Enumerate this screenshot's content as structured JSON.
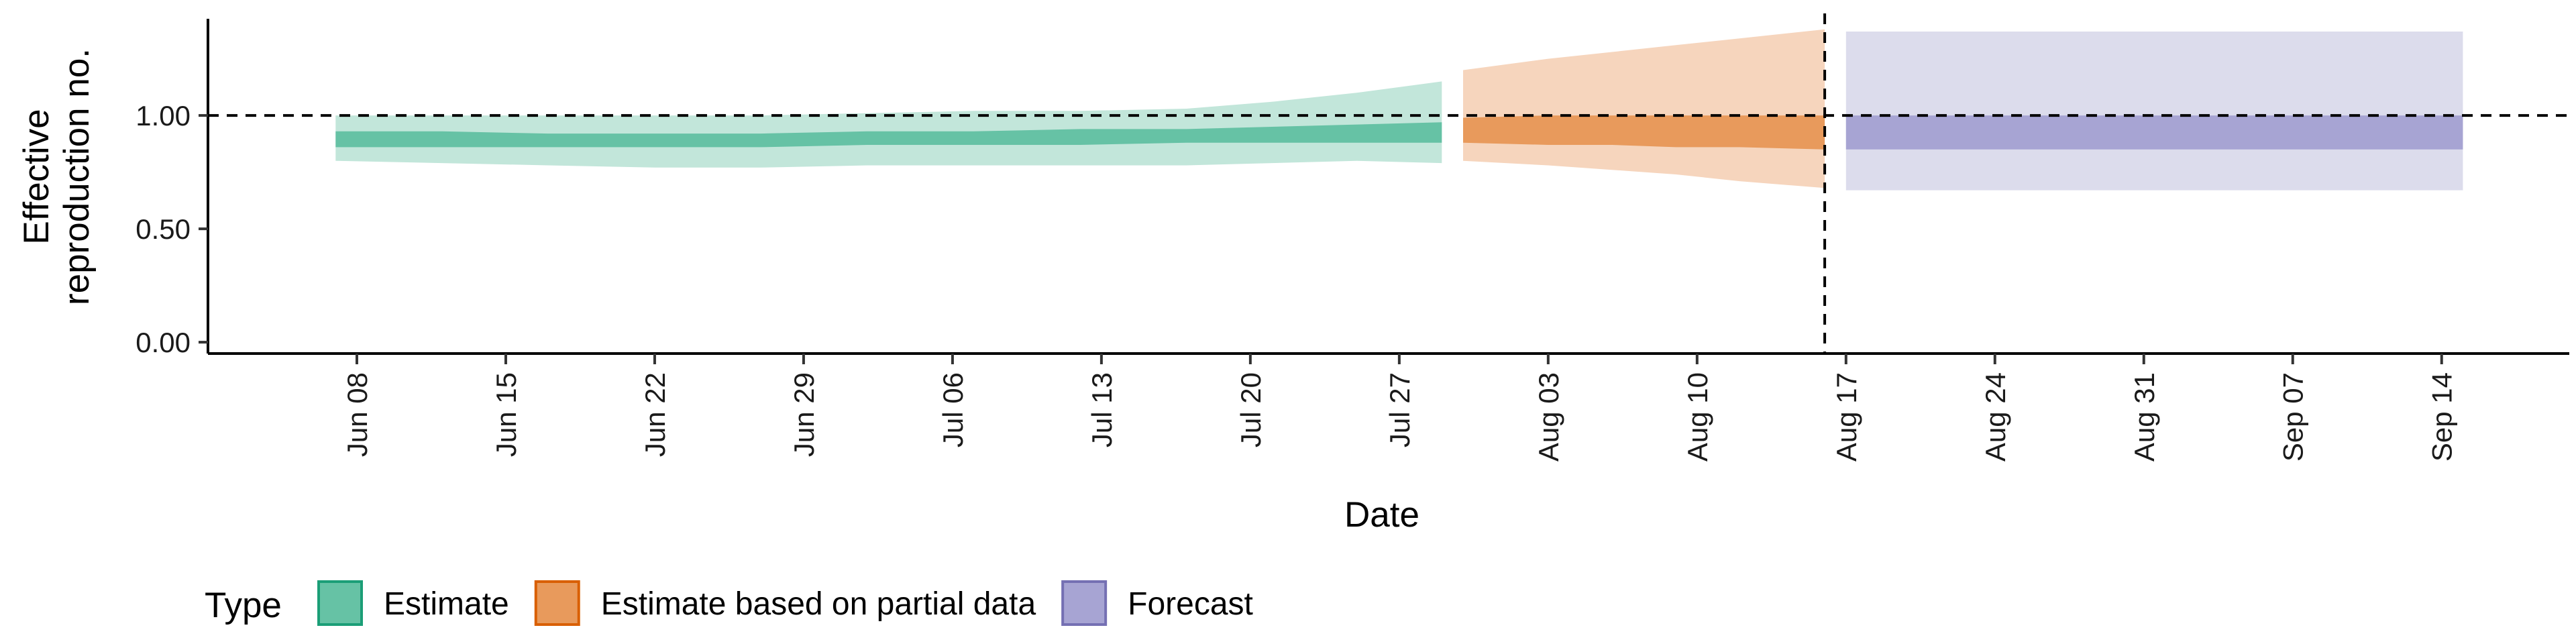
{
  "chart_data": {
    "type": "area",
    "xlabel": "Date",
    "ylabel_lines": [
      "Effective",
      "reproduction no."
    ],
    "x_domain": [
      "2020-06-01",
      "2020-09-20"
    ],
    "ylim": [
      -0.05,
      1.45
    ],
    "y_ticks": [
      {
        "value": 0.0,
        "label": "0.00"
      },
      {
        "value": 0.5,
        "label": "0.50"
      },
      {
        "value": 1.0,
        "label": "1.00"
      }
    ],
    "x_ticks": [
      {
        "date": "2020-06-08",
        "label": "Jun 08"
      },
      {
        "date": "2020-06-15",
        "label": "Jun 15"
      },
      {
        "date": "2020-06-22",
        "label": "Jun 22"
      },
      {
        "date": "2020-06-29",
        "label": "Jun 29"
      },
      {
        "date": "2020-07-06",
        "label": "Jul 06"
      },
      {
        "date": "2020-07-13",
        "label": "Jul 13"
      },
      {
        "date": "2020-07-20",
        "label": "Jul 20"
      },
      {
        "date": "2020-07-27",
        "label": "Jul 27"
      },
      {
        "date": "2020-08-03",
        "label": "Aug 03"
      },
      {
        "date": "2020-08-10",
        "label": "Aug 10"
      },
      {
        "date": "2020-08-17",
        "label": "Aug 17"
      },
      {
        "date": "2020-08-24",
        "label": "Aug 24"
      },
      {
        "date": "2020-08-31",
        "label": "Aug 31"
      },
      {
        "date": "2020-09-07",
        "label": "Sep 07"
      },
      {
        "date": "2020-09-14",
        "label": "Sep 14"
      }
    ],
    "reference_line_y": 1.0,
    "reference_line_date": "2020-08-16",
    "grid": false,
    "legend": {
      "title": "Type",
      "position": "bottom",
      "entries": [
        "Estimate",
        "Estimate based on partial data",
        "Forecast"
      ]
    },
    "series": [
      {
        "name": "Estimate",
        "fill": "#66c2a5",
        "outer_fill": "#c2e6da",
        "border": "#1b9e77",
        "points": [
          {
            "date": "2020-06-07",
            "outer_lo": 0.8,
            "outer_hi": 1.0,
            "inner_lo": 0.86,
            "inner_hi": 0.93
          },
          {
            "date": "2020-06-12",
            "outer_lo": 0.79,
            "outer_hi": 1.0,
            "inner_lo": 0.86,
            "inner_hi": 0.93
          },
          {
            "date": "2020-06-17",
            "outer_lo": 0.78,
            "outer_hi": 1.0,
            "inner_lo": 0.86,
            "inner_hi": 0.92
          },
          {
            "date": "2020-06-22",
            "outer_lo": 0.77,
            "outer_hi": 1.0,
            "inner_lo": 0.86,
            "inner_hi": 0.92
          },
          {
            "date": "2020-06-27",
            "outer_lo": 0.77,
            "outer_hi": 1.0,
            "inner_lo": 0.86,
            "inner_hi": 0.92
          },
          {
            "date": "2020-07-02",
            "outer_lo": 0.78,
            "outer_hi": 1.01,
            "inner_lo": 0.87,
            "inner_hi": 0.93
          },
          {
            "date": "2020-07-07",
            "outer_lo": 0.78,
            "outer_hi": 1.02,
            "inner_lo": 0.87,
            "inner_hi": 0.93
          },
          {
            "date": "2020-07-12",
            "outer_lo": 0.78,
            "outer_hi": 1.02,
            "inner_lo": 0.87,
            "inner_hi": 0.94
          },
          {
            "date": "2020-07-17",
            "outer_lo": 0.78,
            "outer_hi": 1.03,
            "inner_lo": 0.88,
            "inner_hi": 0.94
          },
          {
            "date": "2020-07-21",
            "outer_lo": 0.79,
            "outer_hi": 1.06,
            "inner_lo": 0.88,
            "inner_hi": 0.95
          },
          {
            "date": "2020-07-25",
            "outer_lo": 0.8,
            "outer_hi": 1.1,
            "inner_lo": 0.88,
            "inner_hi": 0.96
          },
          {
            "date": "2020-07-29",
            "outer_lo": 0.79,
            "outer_hi": 1.15,
            "inner_lo": 0.88,
            "inner_hi": 0.97
          }
        ]
      },
      {
        "name": "Estimate based on partial data",
        "fill": "#e89a5c",
        "outer_fill": "#f6d5bd",
        "border": "#d95f02",
        "points": [
          {
            "date": "2020-07-30",
            "outer_lo": 0.8,
            "outer_hi": 1.2,
            "inner_lo": 0.88,
            "inner_hi": 0.99
          },
          {
            "date": "2020-08-03",
            "outer_lo": 0.78,
            "outer_hi": 1.25,
            "inner_lo": 0.87,
            "inner_hi": 1.0
          },
          {
            "date": "2020-08-06",
            "outer_lo": 0.76,
            "outer_hi": 1.28,
            "inner_lo": 0.87,
            "inner_hi": 1.0
          },
          {
            "date": "2020-08-09",
            "outer_lo": 0.74,
            "outer_hi": 1.31,
            "inner_lo": 0.86,
            "inner_hi": 1.0
          },
          {
            "date": "2020-08-12",
            "outer_lo": 0.71,
            "outer_hi": 1.34,
            "inner_lo": 0.86,
            "inner_hi": 1.0
          },
          {
            "date": "2020-08-16",
            "outer_lo": 0.68,
            "outer_hi": 1.38,
            "inner_lo": 0.85,
            "inner_hi": 1.0
          }
        ]
      },
      {
        "name": "Forecast",
        "fill": "#a7a4d3",
        "outer_fill": "#dcdcec",
        "border": "#7570b3",
        "points": [
          {
            "date": "2020-08-17",
            "outer_lo": 0.67,
            "outer_hi": 1.37,
            "inner_lo": 0.85,
            "inner_hi": 1.0
          },
          {
            "date": "2020-09-15",
            "outer_lo": 0.67,
            "outer_hi": 1.37,
            "inner_lo": 0.85,
            "inner_hi": 1.0
          }
        ]
      }
    ]
  }
}
